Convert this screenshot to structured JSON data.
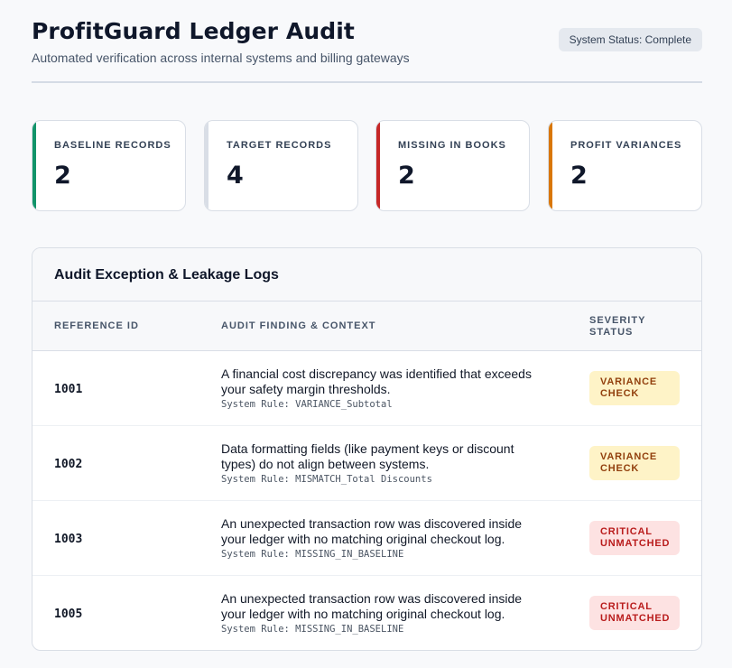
{
  "header": {
    "title": "ProfitGuard Ledger Audit",
    "subtitle": "Automated verification across internal systems and billing gateways",
    "status": "System Status: Complete"
  },
  "cards": [
    {
      "label": "BASELINE RECORDS",
      "value": "2",
      "accent": "#12946a"
    },
    {
      "label": "TARGET RECORDS",
      "value": "4",
      "accent": "#d9dee6"
    },
    {
      "label": "MISSING IN BOOKS",
      "value": "2",
      "accent": "#c62828"
    },
    {
      "label": "PROFIT VARIANCES",
      "value": "2",
      "accent": "#d97706"
    }
  ],
  "panel": {
    "title": "Audit Exception & Leakage Logs",
    "columns": [
      "REFERENCE ID",
      "AUDIT FINDING & CONTEXT",
      "SEVERITY\nSTATUS"
    ],
    "rows": [
      {
        "ref": "1001",
        "finding": "A financial cost discrepancy was identified that exceeds your safety margin thresholds.",
        "rule": "System Rule: VARIANCE_Subtotal",
        "severity": "VARIANCE\nCHECK",
        "severity_type": "variance"
      },
      {
        "ref": "1002",
        "finding": "Data formatting fields (like payment keys or discount types) do not align between systems.",
        "rule": "System Rule: MISMATCH_Total Discounts",
        "severity": "VARIANCE\nCHECK",
        "severity_type": "variance"
      },
      {
        "ref": "1003",
        "finding": "An unexpected transaction row was discovered inside your ledger with no matching original checkout log.",
        "rule": "System Rule: MISSING_IN_BASELINE",
        "severity": "CRITICAL\nUNMATCHED",
        "severity_type": "critical"
      },
      {
        "ref": "1005",
        "finding": "An unexpected transaction row was discovered inside your ledger with no matching original checkout log.",
        "rule": "System Rule: MISSING_IN_BASELINE",
        "severity": "CRITICAL\nUNMATCHED",
        "severity_type": "critical"
      }
    ]
  },
  "colors": {
    "variance_bg": "#fef3c7",
    "variance_text": "#92400e",
    "critical_bg": "#fde2e2",
    "critical_text": "#b91c1c"
  }
}
